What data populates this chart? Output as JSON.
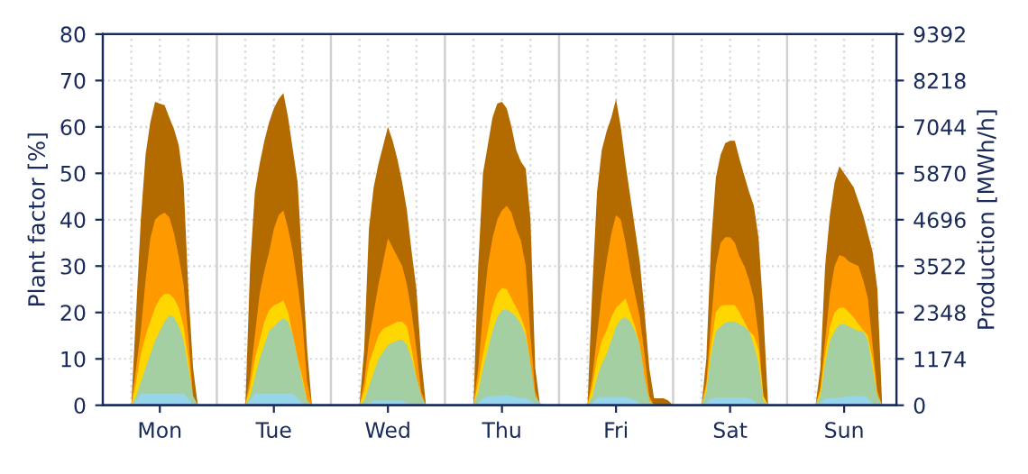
{
  "chart_data": {
    "type": "area",
    "ylabel": "Plant factor [%]",
    "y2label": "Production [MWh/h]",
    "ylim": [
      0,
      80
    ],
    "yticks": [
      0,
      10,
      20,
      30,
      40,
      50,
      60,
      70,
      80
    ],
    "y2lim": [
      0,
      9392
    ],
    "y2ticks": [
      0,
      1174,
      2348,
      3522,
      4696,
      5870,
      7044,
      8218,
      9392
    ],
    "categories": [
      null,
      null,
      null,
      null,
      null,
      null,
      null,
      null,
      null,
      null,
      null,
      null,
      "Mon",
      null,
      null,
      null,
      null,
      null,
      null,
      null,
      null,
      null,
      null,
      null,
      null,
      null,
      null,
      null,
      null,
      null,
      null,
      null,
      null,
      null,
      null,
      null,
      "Tue",
      null,
      null,
      null,
      null,
      null,
      null,
      null,
      null,
      null,
      null,
      null,
      null,
      null,
      null,
      null,
      null,
      null,
      null,
      null,
      null,
      null,
      null,
      null,
      "Wed",
      null,
      null,
      null,
      null,
      null,
      null,
      null,
      null,
      null,
      null,
      null,
      null,
      null,
      null,
      null,
      null,
      null,
      null,
      null,
      null,
      null,
      null,
      null,
      "Thu",
      null,
      null,
      null,
      null,
      null,
      null,
      null,
      null,
      null,
      null,
      null,
      null,
      null,
      null,
      null,
      null,
      null,
      null,
      null,
      null,
      null,
      null,
      null,
      "Fri",
      null,
      null,
      null,
      null,
      null,
      null,
      null,
      null,
      null,
      null,
      null,
      null,
      null,
      null,
      null,
      null,
      null,
      null,
      null,
      null,
      null,
      null,
      null,
      "Sat",
      null,
      null,
      null,
      null,
      null,
      null,
      null,
      null,
      null,
      null,
      null,
      null,
      null,
      null,
      null,
      null,
      null,
      null,
      null,
      null,
      null,
      null,
      null,
      "Sun",
      null,
      null,
      null,
      null,
      null,
      null,
      null,
      null,
      null,
      null,
      null
    ],
    "grid": true,
    "series": [
      {
        "color": "#b36b00",
        "values": [
          0,
          0,
          0,
          0,
          0,
          0,
          0,
          20,
          40,
          54,
          61,
          65.4,
          65,
          64.7,
          62,
          59.5,
          56,
          48,
          25,
          8,
          0,
          0,
          0,
          0,
          0,
          0,
          0,
          0,
          0,
          0,
          0,
          30,
          46,
          52,
          57,
          61,
          64,
          66,
          67.3,
          62,
          55,
          48,
          30,
          12,
          0,
          0,
          0,
          0,
          0,
          0,
          0,
          0,
          0,
          0,
          0,
          12,
          38,
          47,
          52,
          56,
          60,
          57,
          53,
          48,
          42,
          33,
          25,
          10,
          0,
          0,
          0,
          0,
          0,
          0,
          0,
          0,
          0,
          0,
          0,
          30,
          50,
          56,
          62,
          65,
          65.4,
          64,
          60,
          55,
          52.5,
          51,
          40,
          8,
          0,
          0,
          0,
          0,
          0,
          0,
          0,
          0,
          0,
          0,
          0,
          25,
          46,
          55,
          59,
          62,
          66,
          60,
          52,
          45,
          38,
          31,
          20,
          8,
          1.5,
          1.5,
          1.5,
          1,
          0,
          0,
          0,
          0,
          0,
          0,
          0,
          10,
          35,
          49,
          54,
          56.5,
          57,
          57,
          53,
          49.5,
          46,
          43,
          36,
          20,
          0,
          0,
          0,
          0,
          0,
          0,
          0,
          0,
          0,
          0,
          0,
          8,
          30,
          41,
          48,
          51.5,
          50,
          48.5,
          47,
          44,
          41,
          37,
          33,
          25,
          0,
          0,
          0,
          0
        ]
      },
      {
        "color": "#ff9900",
        "values": [
          0,
          0,
          0,
          0,
          0,
          0,
          0,
          8,
          16,
          27,
          36,
          40,
          41,
          41.5,
          40.5,
          37,
          32,
          26,
          15,
          2,
          0,
          0,
          0,
          0,
          0,
          0,
          0,
          0,
          0,
          0,
          0,
          6,
          15,
          24,
          29,
          33,
          38,
          41,
          42,
          38,
          33,
          26,
          18,
          5,
          0,
          0,
          0,
          0,
          0,
          0,
          0,
          0,
          0,
          0,
          0,
          5,
          14,
          20,
          26,
          31,
          36,
          34,
          32,
          30,
          26,
          20,
          12,
          3,
          0,
          0,
          0,
          0,
          0,
          0,
          0,
          0,
          0,
          0,
          0,
          8,
          20,
          30,
          36,
          40,
          42,
          43,
          41.5,
          38,
          35.5,
          30,
          15,
          3,
          0,
          0,
          0,
          0,
          0,
          0,
          0,
          0,
          0,
          0,
          0,
          6,
          15,
          24,
          31,
          37,
          41,
          40,
          35,
          29,
          24,
          19,
          11,
          2,
          0,
          0,
          0,
          0,
          0,
          0,
          0,
          0,
          0,
          0,
          0,
          5,
          18,
          30,
          35,
          36.2,
          36.2,
          35,
          32,
          30,
          27,
          23,
          15,
          2,
          0,
          0,
          0,
          0,
          0,
          0,
          0,
          0,
          0,
          0,
          0,
          4,
          14,
          24,
          30,
          32.4,
          32,
          31,
          30.5,
          30,
          27,
          23,
          13,
          3,
          0,
          0,
          0,
          0
        ]
      },
      {
        "color": "#ffd700",
        "values": [
          0,
          0,
          0,
          0,
          0,
          0,
          0,
          5,
          11,
          15,
          18,
          21,
          23,
          24,
          24,
          23,
          21,
          17,
          10,
          1,
          0,
          0,
          0,
          0,
          0,
          0,
          0,
          0,
          0,
          0,
          0,
          4,
          10,
          14,
          18,
          20.5,
          21.5,
          22,
          22.6,
          20,
          15,
          10,
          6,
          1,
          0,
          0,
          0,
          0,
          0,
          0,
          0,
          0,
          0,
          0,
          0,
          3,
          9,
          12,
          15,
          16.5,
          17,
          17.5,
          18,
          18,
          17,
          12,
          6,
          2,
          0,
          0,
          0,
          0,
          0,
          0,
          0,
          0,
          0,
          0,
          0,
          5,
          11,
          16,
          21,
          24,
          25.3,
          25,
          23,
          21,
          19,
          16,
          9,
          1,
          0,
          0,
          0,
          0,
          0,
          0,
          0,
          0,
          0,
          0,
          0,
          4,
          10,
          14,
          16,
          19,
          21,
          22,
          23,
          20,
          17,
          13,
          6,
          1,
          0,
          0,
          0,
          0,
          0,
          0,
          0,
          0,
          0,
          0,
          0,
          4,
          13,
          20,
          21.4,
          21.6,
          21.6,
          21.6,
          20,
          18,
          16,
          15,
          12,
          2,
          0,
          0,
          0,
          0,
          0,
          0,
          0,
          0,
          0,
          0,
          0,
          3,
          11,
          17,
          20,
          21,
          21,
          20,
          19,
          17.5,
          16.2,
          15,
          10,
          2,
          0,
          0,
          0,
          0
        ]
      },
      {
        "color": "#a3cfa3",
        "values": [
          0,
          0,
          0,
          0,
          0,
          0,
          0,
          2,
          5,
          8,
          11,
          14,
          16,
          18,
          19.4,
          19,
          17,
          14,
          8,
          2,
          0,
          0,
          0,
          0,
          0,
          0,
          0,
          0,
          0,
          0,
          0,
          2,
          6,
          10,
          13,
          16,
          17,
          18,
          18.8,
          18,
          15,
          10,
          5,
          1,
          0,
          0,
          0,
          0,
          0,
          0,
          0,
          0,
          0,
          0,
          0,
          1,
          4,
          7,
          10,
          11.5,
          13,
          13.5,
          14,
          14.2,
          13,
          10,
          6,
          2,
          0,
          0,
          0,
          0,
          0,
          0,
          0,
          0,
          0,
          0,
          0,
          3,
          8,
          12,
          16,
          19,
          20.5,
          20.7,
          20,
          19,
          17.5,
          15,
          9,
          2,
          0.5,
          0,
          0,
          0,
          0,
          0,
          0,
          0,
          0,
          0,
          0,
          2,
          6,
          9,
          11,
          14,
          17,
          18.5,
          19,
          18,
          16,
          13,
          6,
          1,
          0,
          0,
          0,
          0,
          0,
          0,
          0,
          0,
          0,
          0,
          0,
          3,
          11,
          16,
          17,
          17.8,
          18.1,
          18,
          17.5,
          17,
          16,
          13,
          9,
          1,
          0,
          0,
          0,
          0,
          0,
          0,
          0,
          0,
          0,
          0,
          0,
          2,
          9,
          14,
          16,
          17.5,
          17.5,
          17,
          16.5,
          16,
          16,
          14,
          8,
          2,
          0,
          0,
          0,
          0
        ]
      },
      {
        "color": "#97d5ea",
        "values": [
          0,
          0,
          0,
          0,
          0,
          0,
          0,
          1,
          2.5,
          2.5,
          2.5,
          2.5,
          2.5,
          2.5,
          2.5,
          2.5,
          2.5,
          2.5,
          1.5,
          0,
          0,
          0,
          0,
          0,
          0,
          0,
          0,
          0,
          0,
          0,
          0,
          1,
          2.5,
          2.5,
          2.5,
          2.5,
          2.5,
          2.5,
          2.5,
          2.5,
          2.5,
          1.5,
          0.5,
          0,
          0,
          0,
          0,
          0,
          0,
          0,
          0,
          0,
          0,
          0,
          0,
          0,
          0.5,
          1,
          1,
          1,
          1,
          1,
          1,
          1,
          0.5,
          0,
          0,
          0,
          0,
          0,
          0,
          0,
          0,
          0,
          0,
          0,
          0,
          0,
          0,
          0.5,
          1.5,
          2,
          2,
          2,
          2.2,
          2.2,
          2,
          1.8,
          1.5,
          1.5,
          1,
          0.5,
          0,
          0,
          0,
          0,
          0,
          0,
          0,
          0,
          0,
          0,
          0,
          0.5,
          1.5,
          1.8,
          1.8,
          1.8,
          1.8,
          1.8,
          1.8,
          1.5,
          1,
          0.5,
          0,
          0,
          0,
          0,
          0,
          0,
          0,
          0,
          0,
          0,
          0,
          0,
          0,
          0.5,
          1.5,
          1.7,
          1.7,
          1.7,
          1.7,
          1.7,
          1.7,
          1.7,
          1.5,
          1,
          0,
          0,
          0,
          0,
          0,
          0,
          0,
          0,
          0,
          0,
          0,
          0,
          0,
          0.5,
          1.5,
          1.5,
          1.6,
          1.7,
          1.8,
          1.9,
          2,
          2,
          2,
          1.5,
          0.5,
          0,
          0,
          0,
          0,
          0
        ]
      }
    ]
  }
}
